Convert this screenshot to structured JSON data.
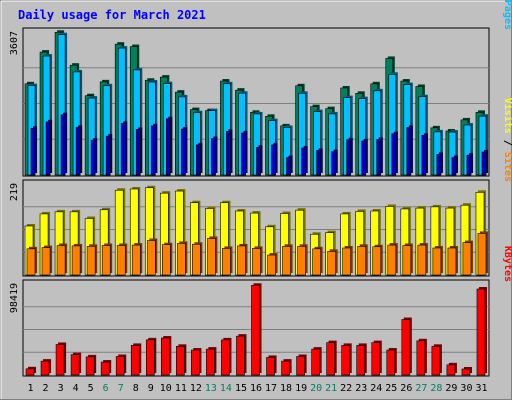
{
  "chart_data": {
    "type": "bar",
    "title": "Daily usage for March 2021",
    "categories": [
      "1",
      "2",
      "3",
      "4",
      "5",
      "6",
      "7",
      "8",
      "9",
      "10",
      "11",
      "12",
      "13",
      "14",
      "15",
      "16",
      "17",
      "18",
      "19",
      "20",
      "21",
      "22",
      "23",
      "24",
      "25",
      "26",
      "27",
      "28",
      "29",
      "30",
      "31"
    ],
    "weekend_days": [
      "6",
      "7",
      "13",
      "14",
      "20",
      "21",
      "27",
      "28"
    ],
    "colors": {
      "background": "#c0c0c0",
      "title": "#0000ff",
      "hits": "#00805c",
      "files": "#00c0ff",
      "pages": "#0000c0",
      "visits": "#ffff00",
      "sites": "#ff8000",
      "kbytes": "#ff0000",
      "weekend_label": "#00805c"
    },
    "panels": [
      {
        "id": "hits",
        "ymax_label": "3607",
        "ymax": 3607,
        "ylabel_parts": [
          {
            "text": "Pages",
            "color": "#00c0ff"
          },
          {
            "text": " / ",
            "color": "#000000"
          },
          {
            "text": "Files",
            "color": "#0000c0"
          },
          {
            "text": " / ",
            "color": "#000000"
          },
          {
            "text": "Hits",
            "color": "#00805c"
          }
        ],
        "series": [
          {
            "name": "Hits",
            "values": [
              2300,
              3100,
              3600,
              2770,
              2000,
              2350,
              3300,
              3240,
              2390,
              2470,
              2090,
              1650,
              1624,
              2370,
              2140,
              1580,
              1480,
              1240,
              2250,
              1724,
              1674,
              2195,
              2060,
              2300,
              2940,
              2370,
              2233,
              1190,
              1110,
              1390,
              1580
            ]
          },
          {
            "name": "Files",
            "values": [
              2254,
              3000,
              3540,
              2600,
              1940,
              2250,
              3200,
              2650,
              2345,
              2305,
              1970,
              1570,
              1624,
              2300,
              2063,
              1540,
              1370,
              1200,
              2060,
              1599,
              1541,
              1952,
              1926,
              2123,
              2540,
              2280,
              1974,
              1087,
              1082,
              1260,
              1484
            ]
          },
          {
            "name": "Pages",
            "values": [
              1180,
              1340,
              1520,
              1200,
              880,
              980,
              1300,
              1150,
              1240,
              1420,
              1160,
              760,
              920,
              1100,
              1060,
              700,
              760,
              440,
              680,
              620,
              590,
              890,
              860,
              900,
              1040,
              1200,
              1000,
              520,
              440,
              500,
              580
            ]
          }
        ]
      },
      {
        "id": "visits",
        "ymax_label": "219",
        "ymax": 219,
        "ylabel_parts": [
          {
            "text": "Sites",
            "color": "#ff8000"
          },
          {
            "text": " / ",
            "color": "#000000"
          },
          {
            "text": "Visits",
            "color": "#ffff00"
          }
        ],
        "series": [
          {
            "name": "Visits",
            "values": [
              118,
              147,
              152,
              152,
              136,
              157,
              204,
              207,
              210,
              197,
              202,
              174,
              160,
              174,
              154,
              149,
              116,
              148,
              156,
              98,
              102,
              147,
              153,
              154,
              165,
              159,
              161,
              164,
              161,
              168,
              199
            ]
          },
          {
            "name": "Sites",
            "values": [
              63,
              66,
              71,
              70,
              69,
              71,
              71,
              72,
              83,
              73,
              76,
              74,
              88,
              64,
              70,
              64,
              48,
              69,
              69,
              63,
              57,
              65,
              69,
              68,
              72,
              71,
              72,
              65,
              65,
              78,
              100
            ]
          }
        ]
      },
      {
        "id": "kbytes",
        "ymax_label": "98419",
        "ymax": 98419,
        "ylabel_parts": [
          {
            "text": "KBytes",
            "color": "#ff0000"
          }
        ],
        "series": [
          {
            "name": "KBytes",
            "values": [
              6700,
              15000,
              33000,
              22000,
              19600,
              14000,
              20000,
              32000,
              38000,
              40000,
              31000,
              27000,
              28000,
              38000,
              42000,
              97000,
              19000,
              15000,
              20000,
              28000,
              35000,
              32000,
              32000,
              35000,
              27000,
              60000,
              37000,
              31000,
              11000,
              6500,
              93000
            ]
          }
        ]
      }
    ]
  }
}
